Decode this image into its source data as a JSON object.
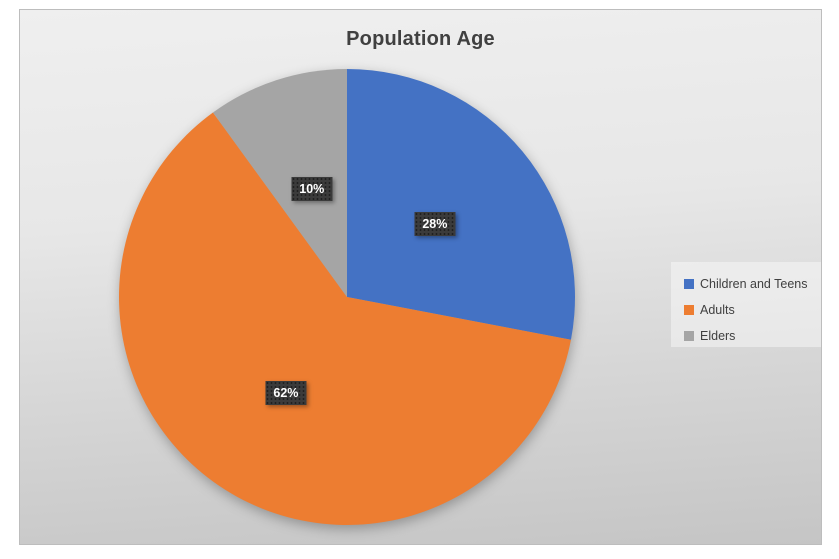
{
  "page": {
    "background": "#ffffff"
  },
  "chart": {
    "border_color": "#bdbdbd",
    "background_top": "#efefef",
    "background_bottom": "#c5c5c5",
    "title_color": "#404040",
    "legend_background": "#e9e9e9",
    "legend_text_color": "#404040",
    "data_label_background": "#3b3b3b",
    "data_label_text_color": "#ffffff"
  },
  "chart_data": {
    "type": "pie",
    "title": "Population Age",
    "series": [
      {
        "name": "Children and Teens",
        "value": 28,
        "label": "28%",
        "color": "#4472C4"
      },
      {
        "name": "Adults",
        "value": 62,
        "label": "62%",
        "color": "#ED7D31"
      },
      {
        "name": "Elders",
        "value": 10,
        "label": "10%",
        "color": "#A5A5A5"
      }
    ],
    "start_angle_deg": 0,
    "direction": "clockwise",
    "label_radius_ratio": 0.5,
    "legend_position": "right",
    "grid": false
  }
}
